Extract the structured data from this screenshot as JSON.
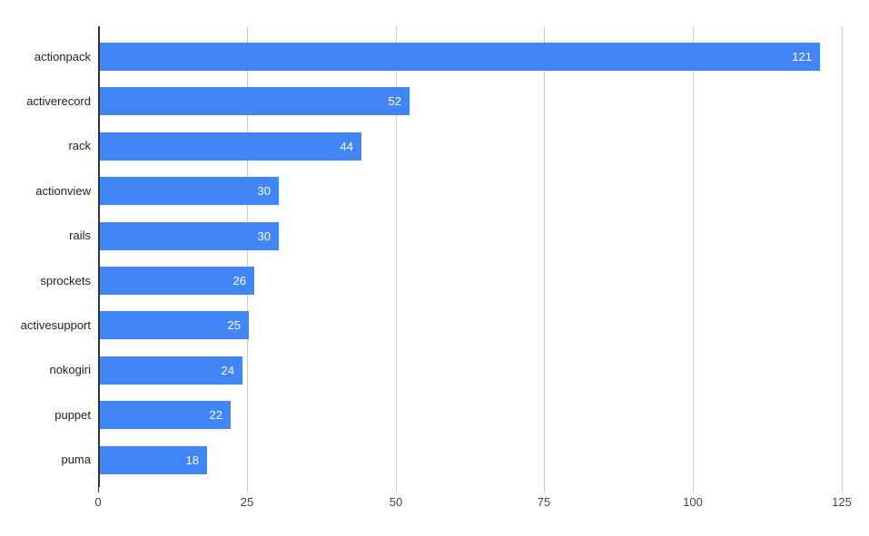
{
  "chart_data": {
    "type": "bar",
    "orientation": "horizontal",
    "title": "",
    "xlabel": "",
    "ylabel": "",
    "categories": [
      "actionpack",
      "activerecord",
      "rack",
      "actionview",
      "rails",
      "sprockets",
      "activesupport",
      "nokogiri",
      "puppet",
      "puma"
    ],
    "values": [
      121,
      52,
      44,
      30,
      30,
      26,
      25,
      24,
      22,
      18
    ],
    "value_labels": [
      "121",
      "52",
      "44",
      "30",
      "30",
      "26",
      "25",
      "24",
      "22",
      "18"
    ],
    "xlim": [
      0,
      125
    ],
    "x_ticks": [
      0,
      25,
      50,
      75,
      100,
      125
    ],
    "x_tick_labels": [
      "0",
      "25",
      "50",
      "75",
      "100",
      "125"
    ],
    "grid": "vertical",
    "legend": "none",
    "colors": {
      "bar": "#4285f4",
      "value_label": "#ffffff",
      "gridline": "#cccccc",
      "axis_line": "#333333",
      "category_label": "#222222",
      "tick_label": "#444444",
      "background": "#ffffff"
    }
  }
}
